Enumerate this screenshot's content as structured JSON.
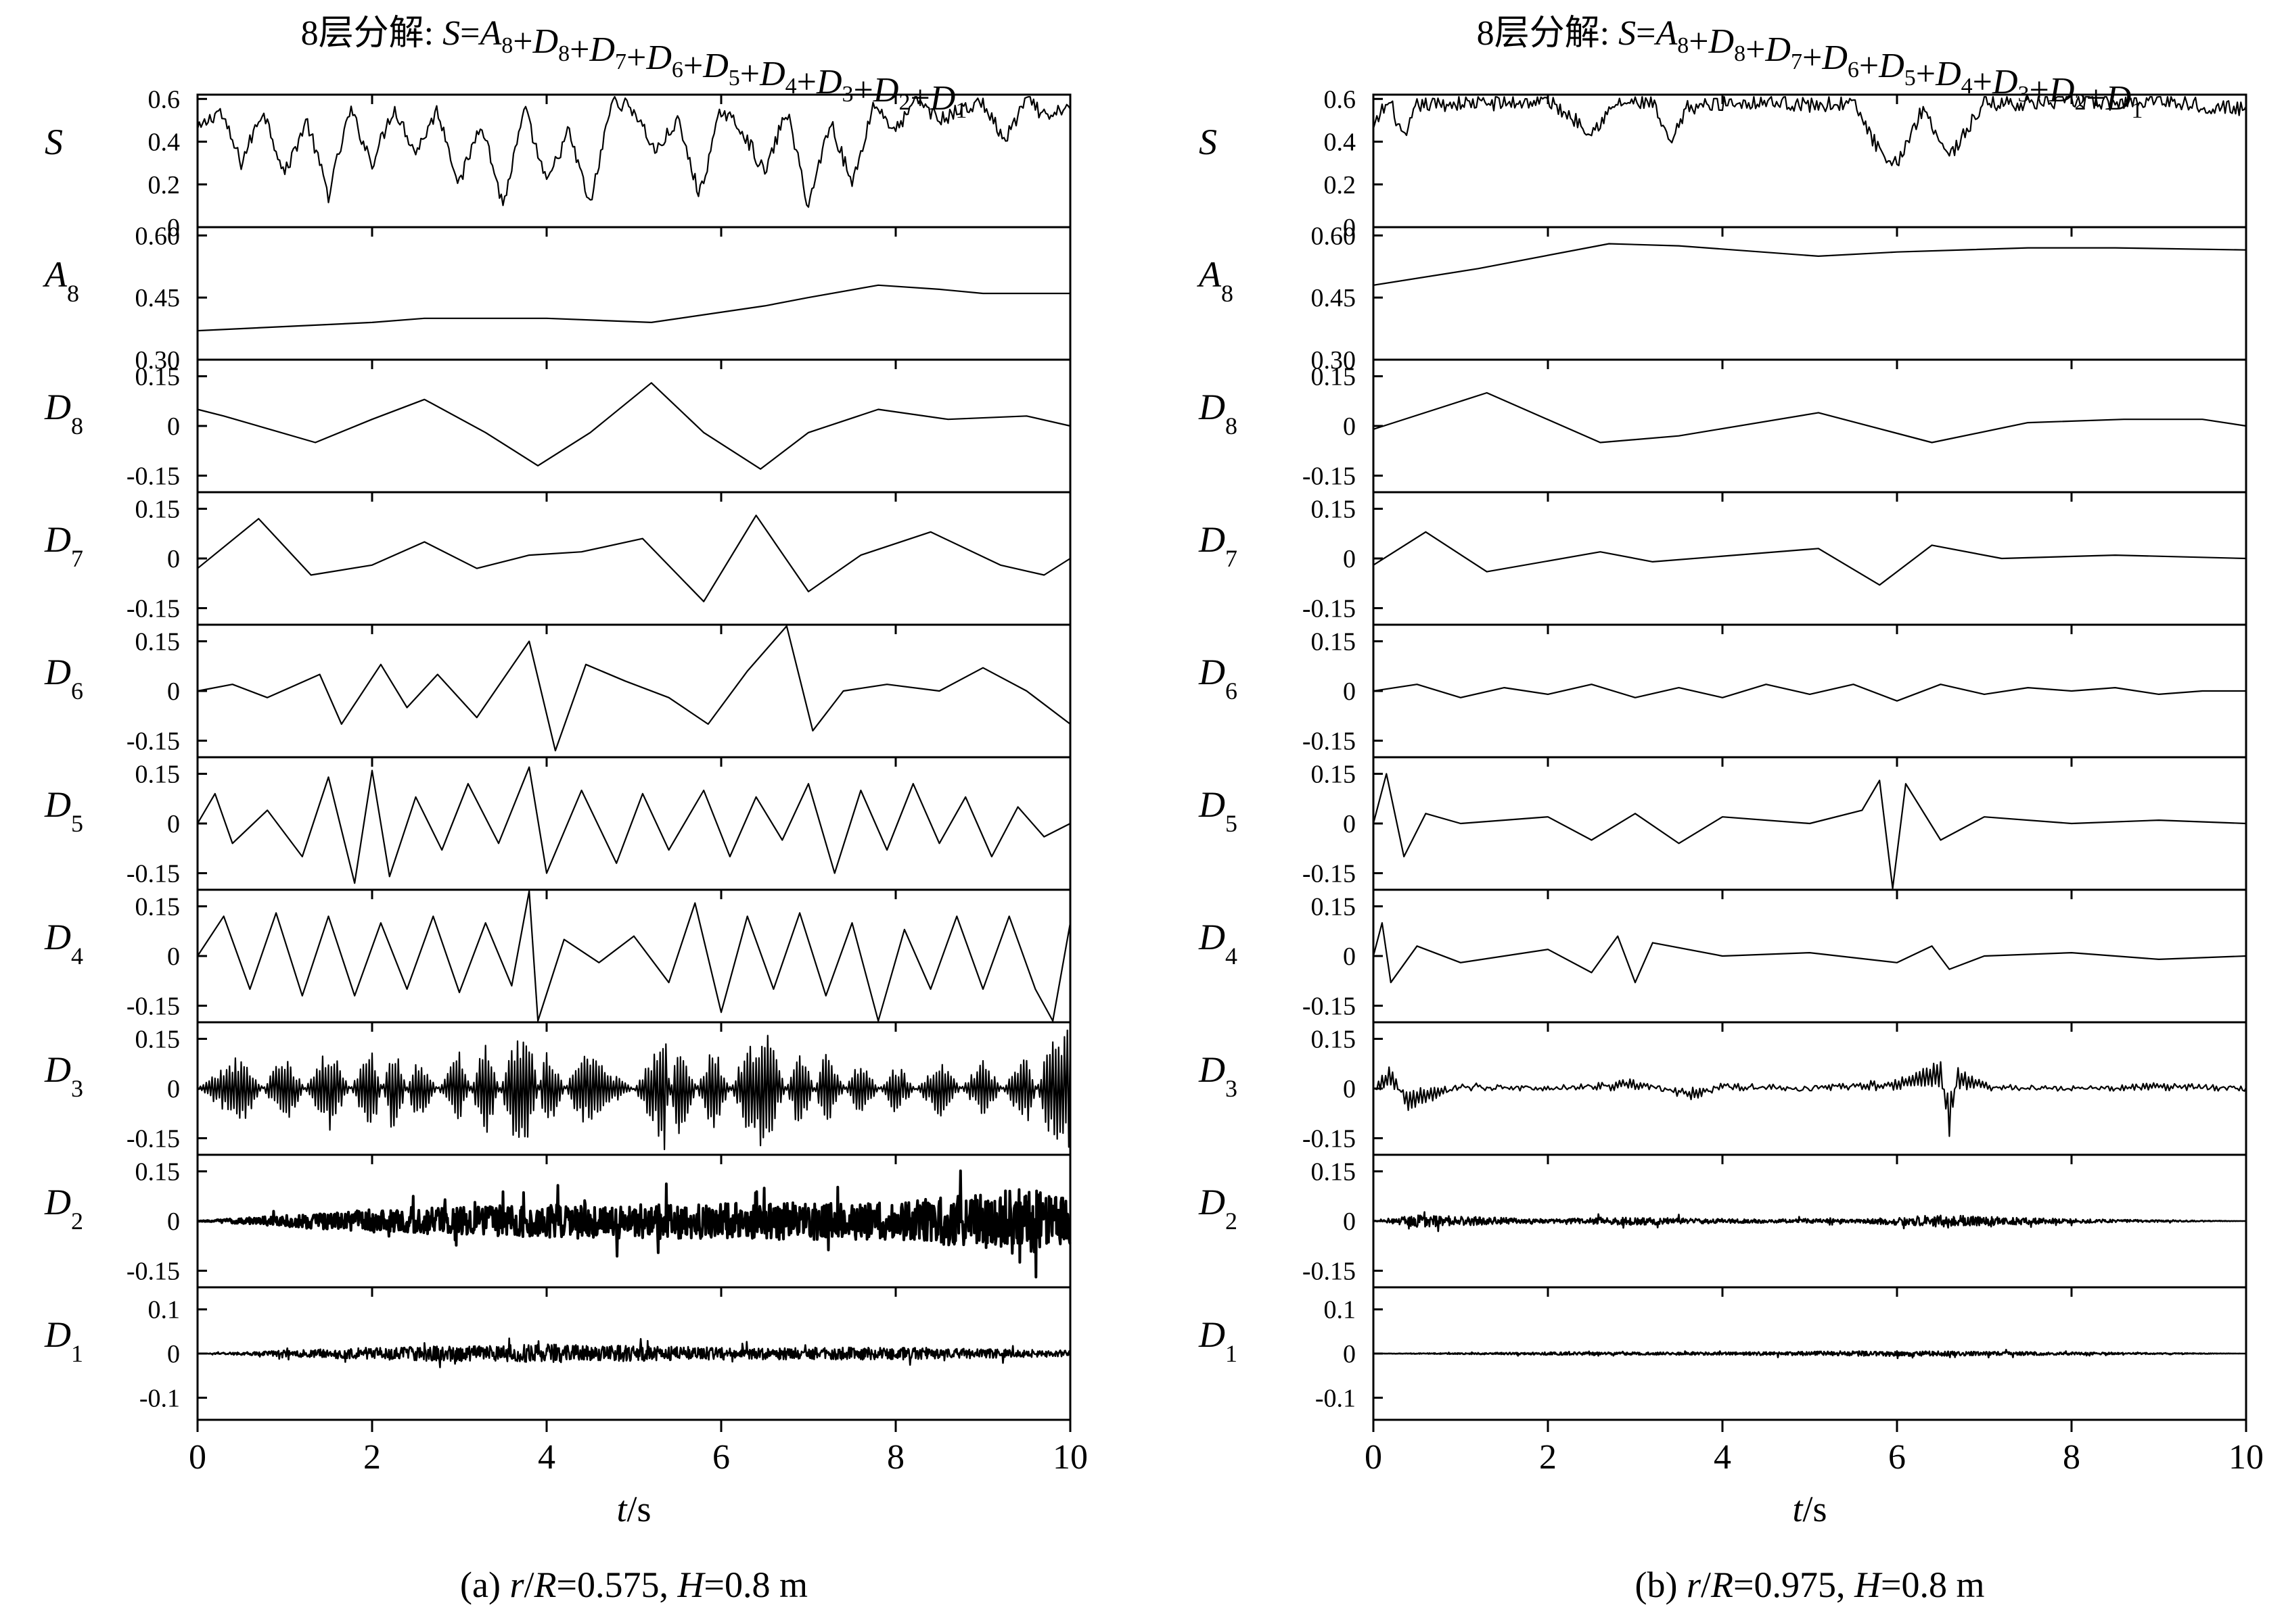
{
  "figure": {
    "x_axis": {
      "ticks": [
        "0",
        "2",
        "4",
        "6",
        "8",
        "10"
      ],
      "tick_values": [
        0,
        2,
        4,
        6,
        8,
        10
      ],
      "range": [
        0,
        10
      ],
      "label_var": "t",
      "label_unit": "/s"
    },
    "panels": [
      {
        "title_prefix": "8层分解: ",
        "title_formula": "S=A8+D8+D7+D6+D5+D4+D3+D2+D1",
        "caption": "(a) r/R=0.575, H=0.8 m"
      },
      {
        "title_prefix": "8层分解: ",
        "title_formula": "S=A8+D8+D7+D6+D5+D4+D3+D2+D1",
        "caption": "(b) r/R=0.975, H=0.8 m"
      }
    ],
    "rows": [
      {
        "name": "S",
        "base": "S",
        "sub": "",
        "ticks": [
          "0.6",
          "0.4",
          "0.2",
          "0"
        ],
        "tick_values": [
          0.6,
          0.4,
          0.2,
          0
        ]
      },
      {
        "name": "A8",
        "base": "A",
        "sub": "8",
        "ticks": [
          "0.60",
          "0.45",
          "0.30"
        ],
        "tick_values": [
          0.6,
          0.45,
          0.3
        ]
      },
      {
        "name": "D8",
        "base": "D",
        "sub": "8",
        "ticks": [
          "0.15",
          "0",
          "-0.15"
        ],
        "tick_values": [
          0.15,
          0,
          -0.15
        ]
      },
      {
        "name": "D7",
        "base": "D",
        "sub": "7",
        "ticks": [
          "0.15",
          "0",
          "-0.15"
        ],
        "tick_values": [
          0.15,
          0,
          -0.15
        ]
      },
      {
        "name": "D6",
        "base": "D",
        "sub": "6",
        "ticks": [
          "0.15",
          "0",
          "-0.15"
        ],
        "tick_values": [
          0.15,
          0,
          -0.15
        ]
      },
      {
        "name": "D5",
        "base": "D",
        "sub": "5",
        "ticks": [
          "0.15",
          "0",
          "-0.15"
        ],
        "tick_values": [
          0.15,
          0,
          -0.15
        ]
      },
      {
        "name": "D4",
        "base": "D",
        "sub": "4",
        "ticks": [
          "0.15",
          "0",
          "-0.15"
        ],
        "tick_values": [
          0.15,
          0,
          -0.15
        ]
      },
      {
        "name": "D3",
        "base": "D",
        "sub": "3",
        "ticks": [
          "0.15",
          "0",
          "-0.15"
        ],
        "tick_values": [
          0.15,
          0,
          -0.15
        ]
      },
      {
        "name": "D2",
        "base": "D",
        "sub": "2",
        "ticks": [
          "0.15",
          "0",
          "-0.15"
        ],
        "tick_values": [
          0.15,
          0,
          -0.15
        ]
      },
      {
        "name": "D1",
        "base": "D",
        "sub": "1",
        "ticks": [
          "0.1",
          "0",
          "-0.1"
        ],
        "tick_values": [
          0.1,
          0,
          -0.1
        ]
      }
    ]
  },
  "chart_data": [
    {
      "type": "line",
      "caption": "(a) r/R=0.575, H=0.8 m",
      "xlim": [
        0,
        10
      ],
      "series": [
        {
          "name": "S",
          "ylim": [
            0,
            0.62
          ],
          "x": [
            0,
            0.25,
            0.5,
            0.75,
            1,
            1.25,
            1.5,
            1.75,
            2,
            2.25,
            2.5,
            2.75,
            3,
            3.25,
            3.5,
            3.75,
            4,
            4.25,
            4.5,
            4.75,
            5,
            5.25,
            5.5,
            5.75,
            6,
            6.25,
            6.5,
            6.75,
            7,
            7.25,
            7.5,
            7.75,
            8,
            8.25,
            8.5,
            8.75,
            9,
            9.25,
            9.5,
            9.75,
            10
          ],
          "y": [
            0.45,
            0.55,
            0.3,
            0.55,
            0.25,
            0.5,
            0.15,
            0.55,
            0.3,
            0.56,
            0.35,
            0.55,
            0.2,
            0.5,
            0.1,
            0.55,
            0.2,
            0.45,
            0.1,
            0.6,
            0.55,
            0.35,
            0.5,
            0.15,
            0.55,
            0.45,
            0.25,
            0.55,
            0.1,
            0.5,
            0.2,
            0.58,
            0.45,
            0.6,
            0.5,
            0.55,
            0.58,
            0.4,
            0.6,
            0.5,
            0.58
          ]
        },
        {
          "name": "A8",
          "ylim": [
            0.3,
            0.62
          ],
          "x": [
            0,
            1,
            2,
            2.6,
            3.5,
            4,
            5.2,
            6.5,
            7,
            7.8,
            8.5,
            9,
            10
          ],
          "y": [
            0.37,
            0.38,
            0.39,
            0.4,
            0.4,
            0.4,
            0.39,
            0.43,
            0.45,
            0.48,
            0.47,
            0.46,
            0.46
          ]
        },
        {
          "name": "D8",
          "ylim": [
            -0.2,
            0.2
          ],
          "x": [
            0,
            0.3,
            1.35,
            2,
            2.6,
            3.3,
            3.9,
            4.5,
            5.2,
            5.8,
            6.45,
            7,
            7.8,
            8.6,
            9.5,
            10
          ],
          "y": [
            0.05,
            0.03,
            -0.05,
            0.02,
            0.08,
            -0.02,
            -0.12,
            -0.02,
            0.13,
            -0.02,
            -0.13,
            -0.02,
            0.05,
            0.02,
            0.03,
            0.0
          ]
        },
        {
          "name": "D7",
          "ylim": [
            -0.2,
            0.2
          ],
          "x": [
            0,
            0.7,
            1.3,
            2,
            2.6,
            3.2,
            3.8,
            4.4,
            5.1,
            5.8,
            6.4,
            7.0,
            7.6,
            8.4,
            9.2,
            9.7,
            10
          ],
          "y": [
            -0.03,
            0.12,
            -0.05,
            -0.02,
            0.05,
            -0.03,
            0.01,
            0.02,
            0.06,
            -0.13,
            0.13,
            -0.1,
            0.01,
            0.08,
            -0.02,
            -0.05,
            0.0
          ]
        },
        {
          "name": "D6",
          "ylim": [
            -0.2,
            0.2
          ],
          "x": [
            0,
            0.4,
            0.8,
            1.4,
            1.65,
            2.1,
            2.4,
            2.75,
            3.2,
            3.8,
            4.1,
            4.45,
            4.9,
            5.4,
            5.85,
            6.3,
            6.75,
            7.05,
            7.4,
            7.9,
            8.5,
            9.0,
            9.5,
            10
          ],
          "y": [
            0.0,
            0.02,
            -0.02,
            0.05,
            -0.1,
            0.08,
            -0.05,
            0.05,
            -0.08,
            0.15,
            -0.18,
            0.08,
            0.03,
            -0.02,
            -0.1,
            0.06,
            0.2,
            -0.12,
            0.0,
            0.02,
            0.0,
            0.07,
            0.0,
            -0.1
          ]
        },
        {
          "name": "D5",
          "ylim": [
            -0.2,
            0.2
          ],
          "x": [
            0,
            0.2,
            0.4,
            0.8,
            1.2,
            1.5,
            1.8,
            2.0,
            2.2,
            2.5,
            2.8,
            3.1,
            3.45,
            3.8,
            4.0,
            4.4,
            4.8,
            5.1,
            5.4,
            5.8,
            6.1,
            6.4,
            6.7,
            7.0,
            7.3,
            7.6,
            7.9,
            8.2,
            8.5,
            8.8,
            9.1,
            9.4,
            9.7,
            10
          ],
          "y": [
            0.0,
            0.09,
            -0.06,
            0.04,
            -0.1,
            0.14,
            -0.18,
            0.16,
            -0.16,
            0.08,
            -0.08,
            0.12,
            -0.06,
            0.17,
            -0.15,
            0.1,
            -0.12,
            0.09,
            -0.08,
            0.1,
            -0.1,
            0.08,
            -0.05,
            0.12,
            -0.15,
            0.1,
            -0.08,
            0.12,
            -0.06,
            0.08,
            -0.1,
            0.05,
            -0.04,
            0.0
          ]
        },
        {
          "name": "D4",
          "ylim": [
            -0.2,
            0.2
          ],
          "x": [
            0,
            0.3,
            0.6,
            0.9,
            1.2,
            1.5,
            1.8,
            2.1,
            2.4,
            2.7,
            3.0,
            3.3,
            3.6,
            3.8,
            3.9,
            4.2,
            4.6,
            5.0,
            5.4,
            5.7,
            6.0,
            6.3,
            6.6,
            6.9,
            7.2,
            7.5,
            7.8,
            8.1,
            8.4,
            8.7,
            9.0,
            9.3,
            9.6,
            9.8,
            10
          ],
          "y": [
            0.0,
            0.12,
            -0.1,
            0.13,
            -0.12,
            0.12,
            -0.12,
            0.1,
            -0.1,
            0.12,
            -0.11,
            0.1,
            -0.09,
            0.21,
            -0.2,
            0.05,
            -0.02,
            0.06,
            -0.08,
            0.16,
            -0.17,
            0.12,
            -0.1,
            0.13,
            -0.12,
            0.1,
            -0.2,
            0.08,
            -0.1,
            0.12,
            -0.1,
            0.12,
            -0.1,
            -0.2,
            0.1
          ]
        },
        {
          "name": "D3",
          "ylim": [
            -0.2,
            0.2
          ],
          "x": [
            0,
            0.5,
            1,
            1.5,
            2,
            2.25,
            2.5,
            3,
            3.3,
            3.6,
            3.8,
            4.0,
            4.4,
            5,
            5.35,
            5.5,
            5.9,
            6.3,
            6.5,
            6.9,
            7.2,
            7.6,
            8,
            8.5,
            9,
            9.5,
            9.75,
            10
          ],
          "y": [
            0.0,
            0.1,
            -0.1,
            0.12,
            -0.12,
            0.14,
            -0.1,
            0.1,
            -0.14,
            0.12,
            0.15,
            -0.12,
            0.1,
            0.0,
            -0.16,
            0.16,
            -0.13,
            0.12,
            0.18,
            -0.12,
            0.1,
            -0.08,
            0.07,
            -0.08,
            0.08,
            -0.1,
            0.12,
            0.16
          ]
        },
        {
          "name": "D2",
          "ylim": [
            -0.2,
            0.2
          ],
          "x": [
            0,
            2,
            4,
            6,
            8,
            9.5,
            10
          ],
          "y": [
            0.0,
            0.05,
            0.07,
            0.08,
            0.08,
            0.14,
            0.1
          ]
        },
        {
          "name": "D1",
          "ylim": [
            -0.15,
            0.15
          ],
          "x": [
            0,
            2,
            4,
            6,
            8,
            10
          ],
          "y": [
            0.0,
            0.02,
            0.03,
            0.02,
            0.02,
            0.01
          ]
        }
      ]
    },
    {
      "type": "line",
      "caption": "(b) r/R=0.975, H=0.8 m",
      "xlim": [
        0,
        10
      ],
      "series": [
        {
          "name": "S",
          "ylim": [
            0,
            0.62
          ],
          "x": [
            0,
            0.1,
            0.2,
            0.35,
            0.5,
            1,
            1.5,
            2,
            2.5,
            2.8,
            3.2,
            3.4,
            3.6,
            4,
            4.5,
            5,
            5.5,
            5.9,
            6.0,
            6.3,
            6.6,
            7,
            7.5,
            8,
            8.5,
            9,
            9.5,
            10
          ],
          "y": [
            0.45,
            0.55,
            0.58,
            0.4,
            0.57,
            0.58,
            0.58,
            0.59,
            0.45,
            0.58,
            0.58,
            0.38,
            0.56,
            0.58,
            0.59,
            0.57,
            0.58,
            0.28,
            0.3,
            0.56,
            0.33,
            0.58,
            0.58,
            0.59,
            0.58,
            0.6,
            0.57,
            0.55
          ]
        },
        {
          "name": "A8",
          "ylim": [
            0.3,
            0.62
          ],
          "x": [
            0,
            1.2,
            2.7,
            3.5,
            5.1,
            6,
            7.5,
            8.5,
            10
          ],
          "y": [
            0.48,
            0.52,
            0.58,
            0.575,
            0.55,
            0.56,
            0.57,
            0.57,
            0.565
          ]
        },
        {
          "name": "D8",
          "ylim": [
            -0.2,
            0.2
          ],
          "x": [
            0,
            1.3,
            2.6,
            3.5,
            5.1,
            6.4,
            7.5,
            8.6,
            9.5,
            10
          ],
          "y": [
            -0.01,
            0.1,
            -0.05,
            -0.03,
            0.04,
            -0.05,
            0.01,
            0.02,
            0.02,
            0.0
          ]
        },
        {
          "name": "D7",
          "ylim": [
            -0.2,
            0.2
          ],
          "x": [
            0,
            0.6,
            1.3,
            2.6,
            3.2,
            5.1,
            5.8,
            6.4,
            7.2,
            8.5,
            10
          ],
          "y": [
            -0.02,
            0.08,
            -0.04,
            0.02,
            -0.01,
            0.03,
            -0.08,
            0.04,
            0.0,
            0.01,
            0.0
          ]
        },
        {
          "name": "D6",
          "ylim": [
            -0.2,
            0.2
          ],
          "x": [
            0,
            0.5,
            1.0,
            1.5,
            2.0,
            2.5,
            3.0,
            3.5,
            4.0,
            4.5,
            5.0,
            5.5,
            6.0,
            6.5,
            7.0,
            7.5,
            8.0,
            8.5,
            9.0,
            9.5,
            10
          ],
          "y": [
            0.0,
            0.02,
            -0.02,
            0.01,
            -0.01,
            0.02,
            -0.02,
            0.01,
            -0.02,
            0.02,
            -0.01,
            0.02,
            -0.03,
            0.02,
            -0.01,
            0.01,
            0.0,
            0.01,
            -0.01,
            0.0,
            0.0
          ]
        },
        {
          "name": "D5",
          "ylim": [
            -0.2,
            0.2
          ],
          "x": [
            0,
            0.15,
            0.35,
            0.6,
            1,
            2,
            2.5,
            3,
            3.5,
            4,
            5,
            5.6,
            5.8,
            5.95,
            6.1,
            6.5,
            7,
            8,
            9,
            10
          ],
          "y": [
            0.0,
            0.15,
            -0.1,
            0.03,
            0.0,
            0.02,
            -0.05,
            0.03,
            -0.06,
            0.02,
            0.0,
            0.04,
            0.13,
            -0.2,
            0.12,
            -0.05,
            0.02,
            0.0,
            0.01,
            0.0
          ]
        },
        {
          "name": "D4",
          "ylim": [
            -0.2,
            0.2
          ],
          "x": [
            0,
            0.1,
            0.2,
            0.5,
            1,
            2,
            2.5,
            2.8,
            3,
            3.2,
            4,
            5,
            6,
            6.4,
            6.6,
            7,
            8,
            9,
            10
          ],
          "y": [
            0.0,
            0.1,
            -0.08,
            0.03,
            -0.02,
            0.02,
            -0.05,
            0.06,
            -0.08,
            0.04,
            0.0,
            0.01,
            -0.02,
            0.03,
            -0.04,
            0.0,
            0.01,
            -0.01,
            0.0
          ]
        },
        {
          "name": "D3",
          "ylim": [
            -0.2,
            0.2
          ],
          "x": [
            0,
            0.2,
            0.4,
            1,
            2,
            3,
            3.7,
            4,
            5,
            6,
            6.5,
            6.6,
            6.7,
            7,
            8,
            9,
            10
          ],
          "y": [
            0.0,
            0.06,
            -0.06,
            0.01,
            0.0,
            0.02,
            -0.03,
            0.01,
            0.0,
            0.02,
            0.07,
            -0.13,
            0.05,
            0.01,
            0.0,
            0.01,
            0.0
          ]
        },
        {
          "name": "D2",
          "ylim": [
            -0.2,
            0.2
          ],
          "x": [
            0,
            0.5,
            2,
            3,
            4,
            5.5,
            6.5,
            8,
            10
          ],
          "y": [
            0.0,
            0.03,
            0.01,
            0.02,
            0.01,
            0.01,
            0.03,
            0.01,
            0.0
          ]
        },
        {
          "name": "D1",
          "ylim": [
            -0.15,
            0.15
          ],
          "x": [
            0,
            2,
            4,
            6,
            8,
            10
          ],
          "y": [
            0.0,
            0.005,
            0.005,
            0.01,
            0.005,
            0.0
          ]
        }
      ]
    }
  ]
}
